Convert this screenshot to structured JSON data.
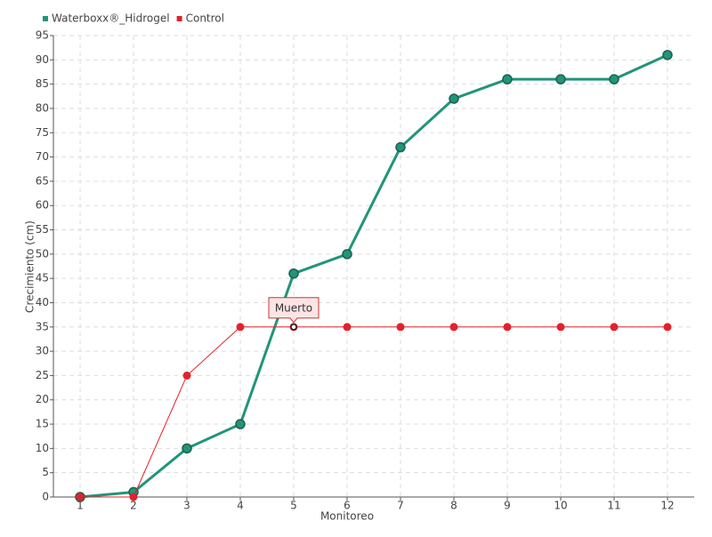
{
  "chart_data": {
    "type": "line",
    "x_label": "Monitoreo",
    "y_label": "Crecimiento (cm)",
    "categories": [
      "1",
      "2",
      "3",
      "4",
      "5",
      "6",
      "7",
      "8",
      "9",
      "10",
      "11",
      "12"
    ],
    "series": [
      {
        "name": "Waterboxx®_Hidrogel",
        "color": "#20957a",
        "values": [
          0,
          1,
          10,
          15,
          46,
          50,
          72,
          82,
          86,
          86,
          86,
          91
        ]
      },
      {
        "name": "Control",
        "color": "#e3212c",
        "values": [
          0,
          0,
          25,
          35,
          35,
          35,
          35,
          35,
          35,
          35,
          35,
          35
        ]
      }
    ],
    "ylim": [
      0,
      95
    ],
    "yticks": [
      0,
      5,
      10,
      15,
      20,
      25,
      30,
      35,
      40,
      45,
      50,
      55,
      60,
      65,
      70,
      75,
      80,
      85,
      90,
      95
    ],
    "grid": true,
    "annotation": {
      "text": "Muerto",
      "series": "Control",
      "category": "5"
    }
  }
}
